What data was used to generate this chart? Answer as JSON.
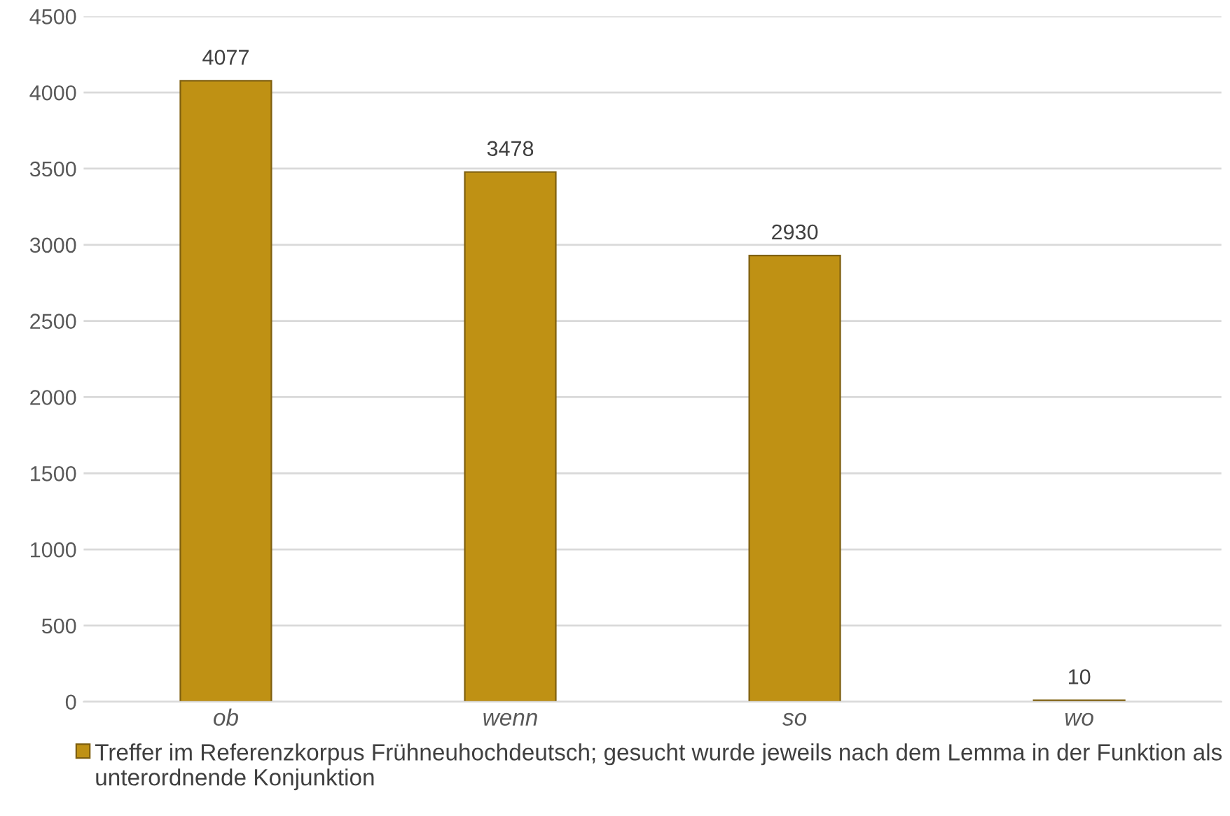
{
  "chart_data": {
    "type": "bar",
    "categories": [
      "ob",
      "wenn",
      "so",
      "wo"
    ],
    "series": [
      {
        "name": "Treffer im Referenzkorpus Frühneuhochdeutsch; gesucht wurde jeweils nach dem Lemma in der Funktion als unterordnende Konjunktion",
        "color": "#bf9114",
        "values": [
          4077,
          3478,
          2930,
          10
        ]
      }
    ],
    "ylim": [
      0,
      4500
    ],
    "yticks": [
      0,
      500,
      1000,
      1500,
      2000,
      2500,
      3000,
      3500,
      4000,
      4500
    ],
    "grid": "y",
    "legend": "bottom",
    "data_labels": true
  }
}
